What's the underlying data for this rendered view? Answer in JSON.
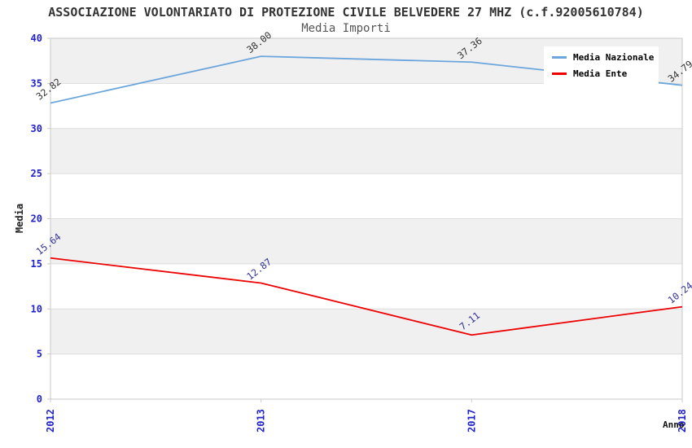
{
  "title": "ASSOCIAZIONE VOLONTARIATO DI PROTEZIONE CIVILE BELVEDERE 27 MHZ (c.f.92005610784)",
  "axis": {
    "x_label": "Anno",
    "y_label": "Media"
  },
  "colors": {
    "tick": "#2222CC",
    "title": "#333333",
    "subtitle": "#555555",
    "band": "#F0F0F0",
    "band_alt": "#FFFFFF",
    "grid": "#DDDDDD",
    "border": "#C9C9C9",
    "background": "#FFFFFF"
  },
  "chart_data": {
    "type": "line",
    "title": "Media Importi",
    "xlabel": "Anno",
    "ylabel": "Media",
    "categories": [
      "2012",
      "2013",
      "2017",
      "2018"
    ],
    "series": [
      {
        "name": "Media Nazionale",
        "color": "#6CA6DC",
        "label_color": "#333333",
        "values": [
          32.82,
          38.0,
          37.36,
          34.79
        ],
        "labels": [
          "32.82",
          "38.00",
          "37.36",
          "34.79"
        ]
      },
      {
        "name": "Media Ente",
        "color": "#EE0000",
        "label_color": "#333399",
        "values": [
          15.64,
          12.87,
          7.11,
          10.24
        ],
        "labels": [
          "15.64",
          "12.87",
          "7.11",
          "10.24"
        ]
      }
    ],
    "ylim": [
      0,
      40
    ],
    "yticks": [
      0,
      5,
      10,
      15,
      20,
      25,
      30,
      35,
      40
    ],
    "band_step": 5,
    "grid": true,
    "legend_position": "top-right",
    "x_tick_rotation": -90,
    "data_label_rotation": -38
  }
}
